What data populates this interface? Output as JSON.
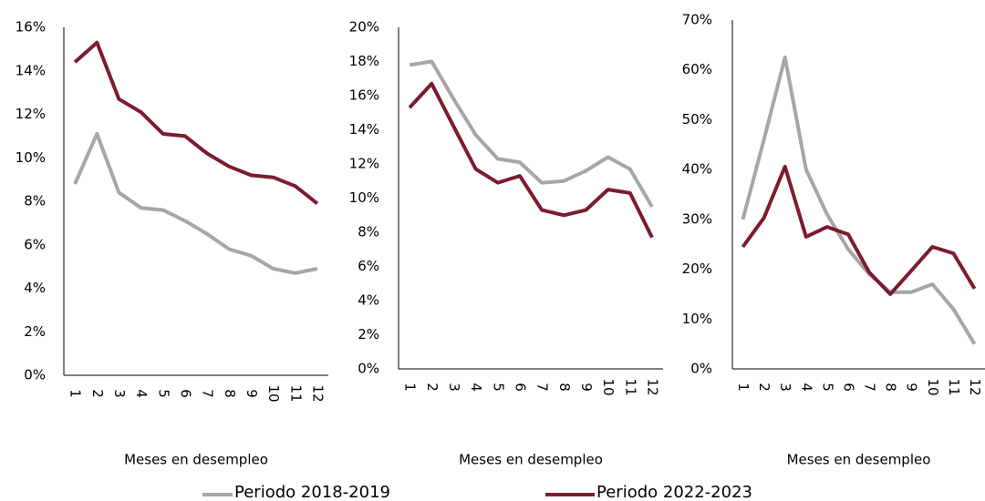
{
  "chart_data": [
    {
      "type": "line",
      "x_label": "Meses en desempleo",
      "categories": [
        "1",
        "2",
        "3",
        "4",
        "5",
        "6",
        "7",
        "8",
        "9",
        "10",
        "11",
        "12"
      ],
      "ylim": [
        0,
        16
      ],
      "yticks": [
        {
          "value": 0,
          "label": "0%"
        },
        {
          "value": 2,
          "label": "2%"
        },
        {
          "value": 4,
          "label": "4%"
        },
        {
          "value": 6,
          "label": "6%"
        },
        {
          "value": 8,
          "label": "8%"
        },
        {
          "value": 10,
          "label": "10%"
        },
        {
          "value": 12,
          "label": "12%"
        },
        {
          "value": 14,
          "label": "14%"
        },
        {
          "value": 16,
          "label": "16%"
        }
      ],
      "series": [
        {
          "name": "Periodo 2018-2019",
          "color": "#a6a6a6",
          "values": [
            8.8,
            11.1,
            8.4,
            7.7,
            7.6,
            7.1,
            6.5,
            5.8,
            5.5,
            4.9,
            4.7,
            4.9
          ]
        },
        {
          "name": "Periodo 2022-2023",
          "color": "#7b1c2e",
          "values": [
            14.4,
            15.3,
            12.7,
            12.1,
            11.1,
            11.0,
            10.2,
            9.6,
            9.2,
            9.1,
            8.7,
            7.9
          ]
        }
      ]
    },
    {
      "type": "line",
      "x_label": "Meses en desempleo",
      "categories": [
        "1",
        "2",
        "3",
        "4",
        "5",
        "6",
        "7",
        "8",
        "9",
        "10",
        "11",
        "12"
      ],
      "ylim": [
        0,
        20
      ],
      "yticks": [
        {
          "value": 0,
          "label": "0%"
        },
        {
          "value": 2,
          "label": "2%"
        },
        {
          "value": 4,
          "label": "4%"
        },
        {
          "value": 6,
          "label": "6%"
        },
        {
          "value": 8,
          "label": "8%"
        },
        {
          "value": 10,
          "label": "10%"
        },
        {
          "value": 12,
          "label": "12%"
        },
        {
          "value": 14,
          "label": "14%"
        },
        {
          "value": 16,
          "label": "16%"
        },
        {
          "value": 18,
          "label": "18%"
        },
        {
          "value": 20,
          "label": "20%"
        }
      ],
      "series": [
        {
          "name": "Periodo 2018-2019",
          "color": "#a6a6a6",
          "values": [
            17.8,
            18.0,
            15.8,
            13.7,
            12.3,
            12.1,
            10.9,
            11.0,
            11.6,
            12.4,
            11.7,
            9.5
          ]
        },
        {
          "name": "Periodo 2022-2023",
          "color": "#7b1c2e",
          "values": [
            15.3,
            16.7,
            14.2,
            11.7,
            10.9,
            11.3,
            9.3,
            9.0,
            9.3,
            10.5,
            10.3,
            7.7
          ]
        }
      ]
    },
    {
      "type": "line",
      "x_label": "Meses en desempleo",
      "categories": [
        "1",
        "2",
        "3",
        "4",
        "5",
        "6",
        "7",
        "8",
        "9",
        "10",
        "11",
        "12"
      ],
      "ylim": [
        0,
        70
      ],
      "yticks": [
        {
          "value": 0,
          "label": "0%"
        },
        {
          "value": 10,
          "label": "10%"
        },
        {
          "value": 20,
          "label": "20%"
        },
        {
          "value": 30,
          "label": "30%"
        },
        {
          "value": 40,
          "label": "40%"
        },
        {
          "value": 50,
          "label": "50%"
        },
        {
          "value": 60,
          "label": "60%"
        },
        {
          "value": 70,
          "label": "70%"
        }
      ],
      "series": [
        {
          "name": "Periodo 2018-2019",
          "color": "#a6a6a6",
          "values": [
            30,
            46,
            62.5,
            40,
            31,
            24,
            19,
            15.4,
            15.4,
            17,
            12,
            5
          ]
        },
        {
          "name": "Periodo 2022-2023",
          "color": "#7b1c2e",
          "values": [
            24.5,
            30.3,
            40.6,
            26.5,
            28.5,
            27,
            19.4,
            15,
            19.7,
            24.5,
            23.2,
            16.1
          ]
        }
      ]
    }
  ]
}
